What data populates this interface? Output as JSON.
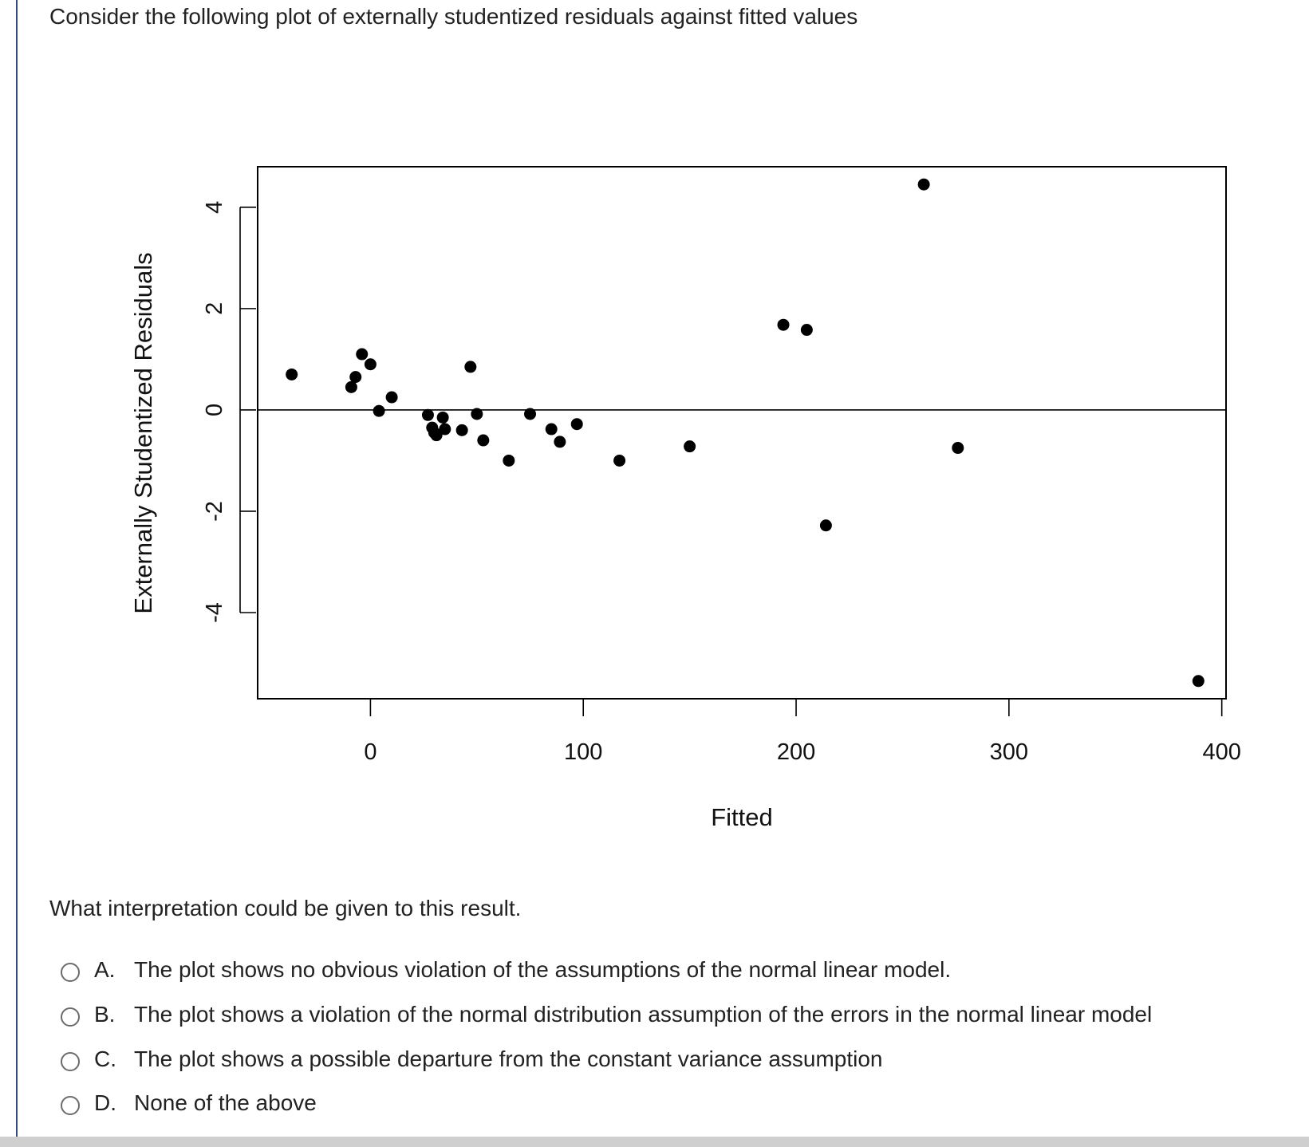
{
  "question": {
    "intro": "Consider the following plot of externally studentized residuals against fitted values",
    "prompt": "What interpretation could be given to this result."
  },
  "options": [
    {
      "letter": "A.",
      "text": "The plot shows no obvious violation of the assumptions of the normal linear model."
    },
    {
      "letter": "B.",
      "text": "The plot shows a violation of the normal distribution assumption of the errors in the normal linear model"
    },
    {
      "letter": "C.",
      "text": "The plot shows a possible departure from the constant variance assumption"
    },
    {
      "letter": "D.",
      "text": "None of the above"
    }
  ],
  "chart_data": {
    "type": "scatter",
    "title": "",
    "xlabel": "Fitted",
    "ylabel": "Externally Studentized Residuals",
    "xlim": [
      -53,
      402
    ],
    "ylim": [
      -5.7,
      4.8
    ],
    "x_ticks": [
      0,
      100,
      200,
      300,
      400
    ],
    "x_tick_labels": [
      "0",
      "100",
      "200",
      "300",
      "400"
    ],
    "y_ticks": [
      -4,
      -2,
      0,
      2,
      4
    ],
    "y_tick_labels": [
      "-4",
      "-2",
      "0",
      "2",
      "4"
    ],
    "hline_y": 0,
    "grid": false,
    "legend": "none",
    "color": "#000000",
    "points": [
      {
        "x": -37,
        "y": 0.7
      },
      {
        "x": -9,
        "y": 0.45
      },
      {
        "x": -7,
        "y": 0.65
      },
      {
        "x": -4,
        "y": 1.1
      },
      {
        "x": 0,
        "y": 0.9
      },
      {
        "x": 4,
        "y": -0.02
      },
      {
        "x": 10,
        "y": 0.25
      },
      {
        "x": 27,
        "y": -0.1
      },
      {
        "x": 29,
        "y": -0.35
      },
      {
        "x": 30,
        "y": -0.45
      },
      {
        "x": 31,
        "y": -0.5
      },
      {
        "x": 34,
        "y": -0.15
      },
      {
        "x": 35,
        "y": -0.38
      },
      {
        "x": 43,
        "y": -0.4
      },
      {
        "x": 47,
        "y": 0.85
      },
      {
        "x": 50,
        "y": -0.08
      },
      {
        "x": 53,
        "y": -0.6
      },
      {
        "x": 65,
        "y": -1.0
      },
      {
        "x": 75,
        "y": -0.08
      },
      {
        "x": 85,
        "y": -0.38
      },
      {
        "x": 89,
        "y": -0.63
      },
      {
        "x": 97,
        "y": -0.28
      },
      {
        "x": 117,
        "y": -1.0
      },
      {
        "x": 150,
        "y": -0.72
      },
      {
        "x": 194,
        "y": 1.68
      },
      {
        "x": 205,
        "y": 1.58
      },
      {
        "x": 214,
        "y": -2.28
      },
      {
        "x": 260,
        "y": 4.45
      },
      {
        "x": 276,
        "y": -0.75
      },
      {
        "x": 389,
        "y": -5.35
      }
    ]
  }
}
